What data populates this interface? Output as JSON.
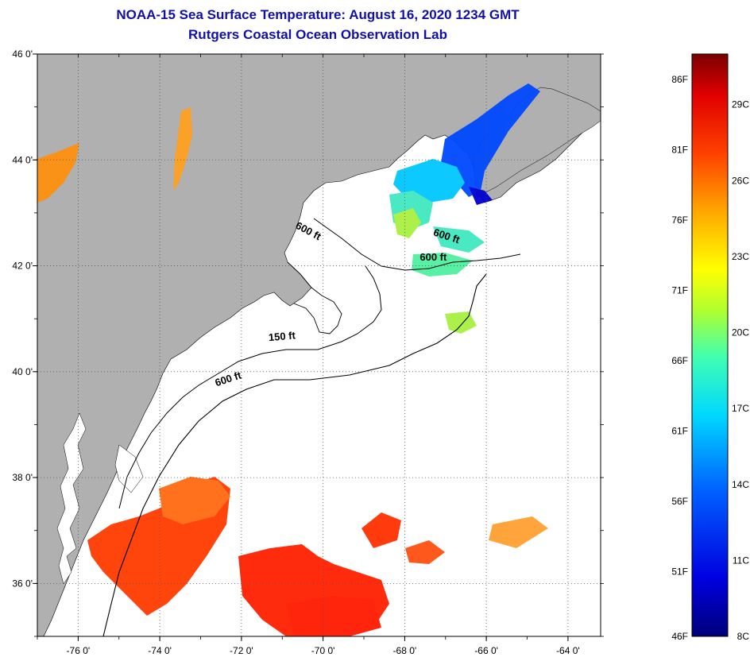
{
  "title": "NOAA-15 Sea Surface Temperature:  August 16, 2020 1234 GMT",
  "subtitle": "Rutgers Coastal Ocean Observation Lab",
  "map": {
    "lon_range": [
      -77,
      -63.2
    ],
    "lat_range": [
      35,
      46
    ],
    "lon_ticks": [
      {
        "value": -76,
        "label": "-76 0'"
      },
      {
        "value": -74,
        "label": "-74 0'"
      },
      {
        "value": -72,
        "label": "-72 0'"
      },
      {
        "value": -70,
        "label": "-70 0'"
      },
      {
        "value": -68,
        "label": "-68 0'"
      },
      {
        "value": -66,
        "label": "-66 0'"
      },
      {
        "value": -64,
        "label": "-64 0'"
      }
    ],
    "lat_ticks": [
      {
        "value": 46,
        "label": "46 0'"
      },
      {
        "value": 44,
        "label": "44 0'"
      },
      {
        "value": 42,
        "label": "42 0'"
      },
      {
        "value": 40,
        "label": "40 0'"
      },
      {
        "value": 38,
        "label": "38 0'"
      },
      {
        "value": 36,
        "label": "36 0'"
      }
    ],
    "contour_labels": [
      {
        "text": "600 ft",
        "lon": -70.4,
        "lat": 42.6,
        "rotate": 28
      },
      {
        "text": "600 ft",
        "lon": -67.0,
        "lat": 42.5,
        "rotate": 18
      },
      {
        "text": "600 ft",
        "lon": -67.3,
        "lat": 42.1,
        "rotate": 0
      },
      {
        "text": "150 ft",
        "lon": -71.0,
        "lat": 40.6,
        "rotate": -5
      },
      {
        "text": "600 ft",
        "lon": -72.3,
        "lat": 39.8,
        "rotate": -18
      }
    ],
    "land_color": "#b0b0b0",
    "water_color": "#ffffff"
  },
  "colorbar": {
    "min_c": 8,
    "max_c": 31,
    "fahrenheit_labels": [
      {
        "value": 86,
        "label": "86F"
      },
      {
        "value": 81,
        "label": "81F"
      },
      {
        "value": 76,
        "label": "76F"
      },
      {
        "value": 71,
        "label": "71F"
      },
      {
        "value": 66,
        "label": "66F"
      },
      {
        "value": 61,
        "label": "61F"
      },
      {
        "value": 56,
        "label": "56F"
      },
      {
        "value": 51,
        "label": "51F"
      },
      {
        "value": 46,
        "label": "46F"
      }
    ],
    "celsius_labels": [
      {
        "value": 29,
        "label": "29C"
      },
      {
        "value": 26,
        "label": "26C"
      },
      {
        "value": 23,
        "label": "23C"
      },
      {
        "value": 20,
        "label": "20C"
      },
      {
        "value": 17,
        "label": "17C"
      },
      {
        "value": 14,
        "label": "14C"
      },
      {
        "value": 11,
        "label": "11C"
      },
      {
        "value": 8,
        "label": "8C"
      }
    ]
  }
}
